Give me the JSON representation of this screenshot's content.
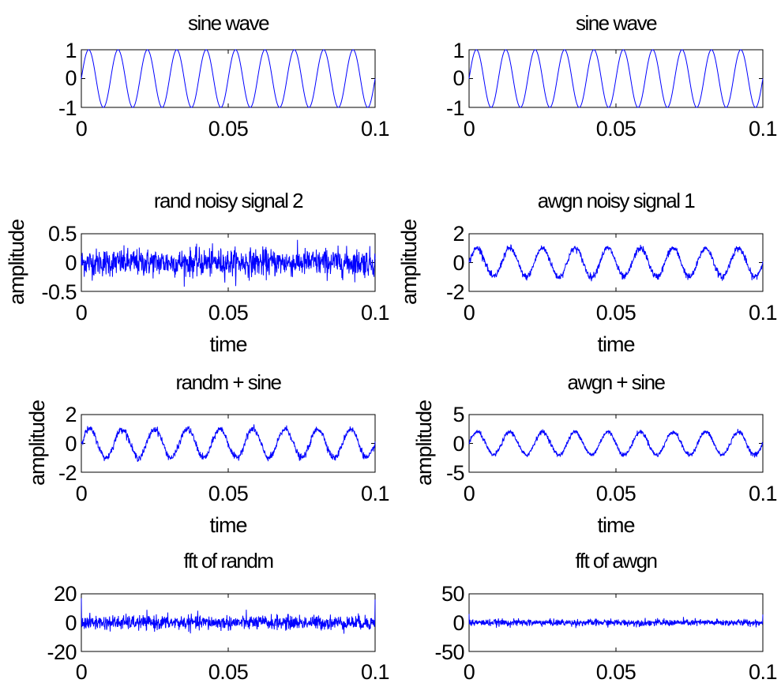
{
  "chart_data": [
    {
      "type": "line",
      "title": "sine wave",
      "xlabel": "",
      "ylabel": "",
      "xlim": [
        0,
        0.1
      ],
      "ylim": [
        -1,
        1
      ],
      "xticks": [
        "0",
        "0.05",
        "0.1"
      ],
      "yticks": [
        "1",
        "0",
        "-1"
      ],
      "grid": false,
      "line_color": "#0000ff",
      "signal": {
        "kind": "sine",
        "frequency_hz": 100,
        "amplitude": 1,
        "noise_sd": 0,
        "samples": 1000
      },
      "series": [
        {
          "values_description_only_in_script": false
        }
      ]
    },
    {
      "type": "line",
      "title": "sine wave",
      "xlabel": "",
      "ylabel": "",
      "xlim": [
        0,
        0.1
      ],
      "ylim": [
        -1,
        1
      ],
      "xticks": [
        "0",
        "0.05",
        "0.1"
      ],
      "yticks": [
        "1",
        "0",
        "-1"
      ],
      "grid": false,
      "line_color": "#0000ff",
      "signal": {
        "kind": "sine",
        "frequency_hz": 100,
        "amplitude": 1,
        "noise_sd": 0,
        "samples": 1000
      }
    },
    {
      "type": "line",
      "title": "rand noisy signal 2",
      "xlabel": "time",
      "ylabel": "amplitude",
      "xlim": [
        0,
        0.1
      ],
      "ylim": [
        -0.5,
        0.5
      ],
      "xticks": [
        "0",
        "0.05",
        "0.1"
      ],
      "yticks": [
        "0.5",
        "0",
        "-0.5"
      ],
      "grid": false,
      "line_color": "#0000ff",
      "signal": {
        "kind": "noise",
        "frequency_hz": 0,
        "amplitude": 0,
        "noise_sd": 0.12,
        "samples": 1000
      }
    },
    {
      "type": "line",
      "title": "awgn noisy signal 1",
      "xlabel": "time",
      "ylabel": "amplitude",
      "xlim": [
        0,
        0.1
      ],
      "ylim": [
        -2,
        2
      ],
      "xticks": [
        "0",
        "0.05",
        "0.1"
      ],
      "yticks": [
        "2",
        "0",
        "-2"
      ],
      "grid": false,
      "line_color": "#0000ff",
      "signal": {
        "kind": "sine+noise",
        "frequency_hz": 90,
        "amplitude": 1,
        "noise_sd": 0.12,
        "samples": 1000
      }
    },
    {
      "type": "line",
      "title": "randm + sine",
      "xlabel": "time",
      "ylabel": "amplitude",
      "xlim": [
        0,
        0.1
      ],
      "ylim": [
        -2,
        2
      ],
      "xticks": [
        "0",
        "0.05",
        "0.1"
      ],
      "yticks": [
        "2",
        "0",
        "-2"
      ],
      "grid": false,
      "line_color": "#0000ff",
      "signal": {
        "kind": "sine+noise",
        "frequency_hz": 90,
        "amplitude": 1,
        "noise_sd": 0.12,
        "samples": 1000
      }
    },
    {
      "type": "line",
      "title": "awgn + sine",
      "xlabel": "time",
      "ylabel": "amplitude",
      "xlim": [
        0,
        0.1
      ],
      "ylim": [
        -5,
        5
      ],
      "xticks": [
        "0",
        "0.05",
        "0.1"
      ],
      "yticks": [
        "5",
        "0",
        "-5"
      ],
      "grid": false,
      "line_color": "#0000ff",
      "signal": {
        "kind": "sine+noise",
        "frequency_hz": 90,
        "amplitude": 2,
        "noise_sd": 0.2,
        "samples": 1000
      }
    },
    {
      "type": "line",
      "title": "fft of randm",
      "xlabel": "",
      "ylabel": "",
      "xlim": [
        0,
        0.1
      ],
      "ylim": [
        -20,
        20
      ],
      "xticks": [
        "0",
        "0.05",
        "0.1"
      ],
      "yticks": [
        "20",
        "0",
        "-20"
      ],
      "grid": false,
      "line_color": "#0000ff",
      "signal": {
        "kind": "noise",
        "frequency_hz": 0,
        "amplitude": 0,
        "noise_sd": 2.5,
        "samples": 1000,
        "spike_start": 17,
        "spike_end": 16
      }
    },
    {
      "type": "line",
      "title": "fft of awgn",
      "xlabel": "",
      "ylabel": "",
      "xlim": [
        0,
        0.1
      ],
      "ylim": [
        -50,
        50
      ],
      "xticks": [
        "0",
        "0.05",
        "0.1"
      ],
      "yticks": [
        "50",
        "0",
        "-50"
      ],
      "grid": false,
      "line_color": "#0000ff",
      "signal": {
        "kind": "noise",
        "frequency_hz": 0,
        "amplitude": 0,
        "noise_sd": 3,
        "samples": 1000,
        "spike_start": 15,
        "spike_end": 14
      }
    }
  ]
}
